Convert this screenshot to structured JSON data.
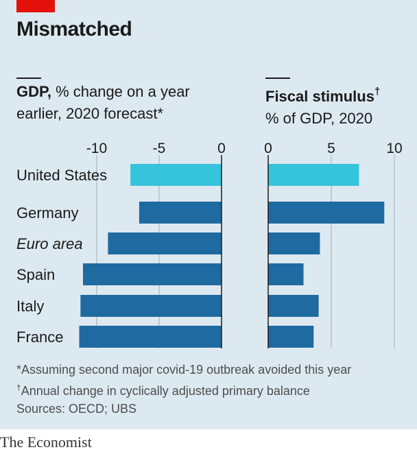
{
  "title": "Mismatched",
  "left_panel": {
    "title_bold": "GDP,",
    "title_rest": " % change on a year",
    "title_line2": "earlier, 2020 forecast*"
  },
  "right_panel": {
    "title_bold": "Fiscal stimulus",
    "title_marker": "†",
    "title_line2": "% of GDP, 2020"
  },
  "notes": {
    "line1": "*Assuming second major covid-19 outbreak avoided this year",
    "line2_marker": "†",
    "line2": "Annual change in cyclically adjusted primary balance",
    "sources": "Sources: OECD; UBS"
  },
  "footer": "The Economist",
  "colors": {
    "highlight": "#35c4dc",
    "bar": "#1f6aa0",
    "background": "#dde9f0",
    "brand_red": "#e3120b"
  },
  "chart_data": [
    {
      "type": "bar",
      "orientation": "horizontal",
      "title": "GDP, % change on a year earlier, 2020 forecast*",
      "categories": [
        "United States",
        "Germany",
        "Euro area",
        "Spain",
        "Italy",
        "France"
      ],
      "italic_categories": [
        "Euro area"
      ],
      "highlight": [
        "United States"
      ],
      "values": [
        -7.3,
        -6.6,
        -9.1,
        -11.1,
        -11.3,
        -11.4
      ],
      "xlim": [
        -12,
        0
      ],
      "ticks": [
        -10,
        -5,
        0
      ],
      "tick_labels": [
        "-10",
        "-5",
        "0"
      ],
      "grid": true
    },
    {
      "type": "bar",
      "orientation": "horizontal",
      "title": "Fiscal stimulus† % of GDP, 2020",
      "categories": [
        "United States",
        "Germany",
        "Euro area",
        "Spain",
        "Italy",
        "France"
      ],
      "highlight": [
        "United States"
      ],
      "values": [
        7.2,
        9.2,
        4.1,
        2.8,
        4.0,
        3.6
      ],
      "xlim": [
        0,
        10
      ],
      "ticks": [
        0,
        5,
        10
      ],
      "tick_labels": [
        "0",
        "5",
        "10"
      ],
      "grid": true
    }
  ]
}
